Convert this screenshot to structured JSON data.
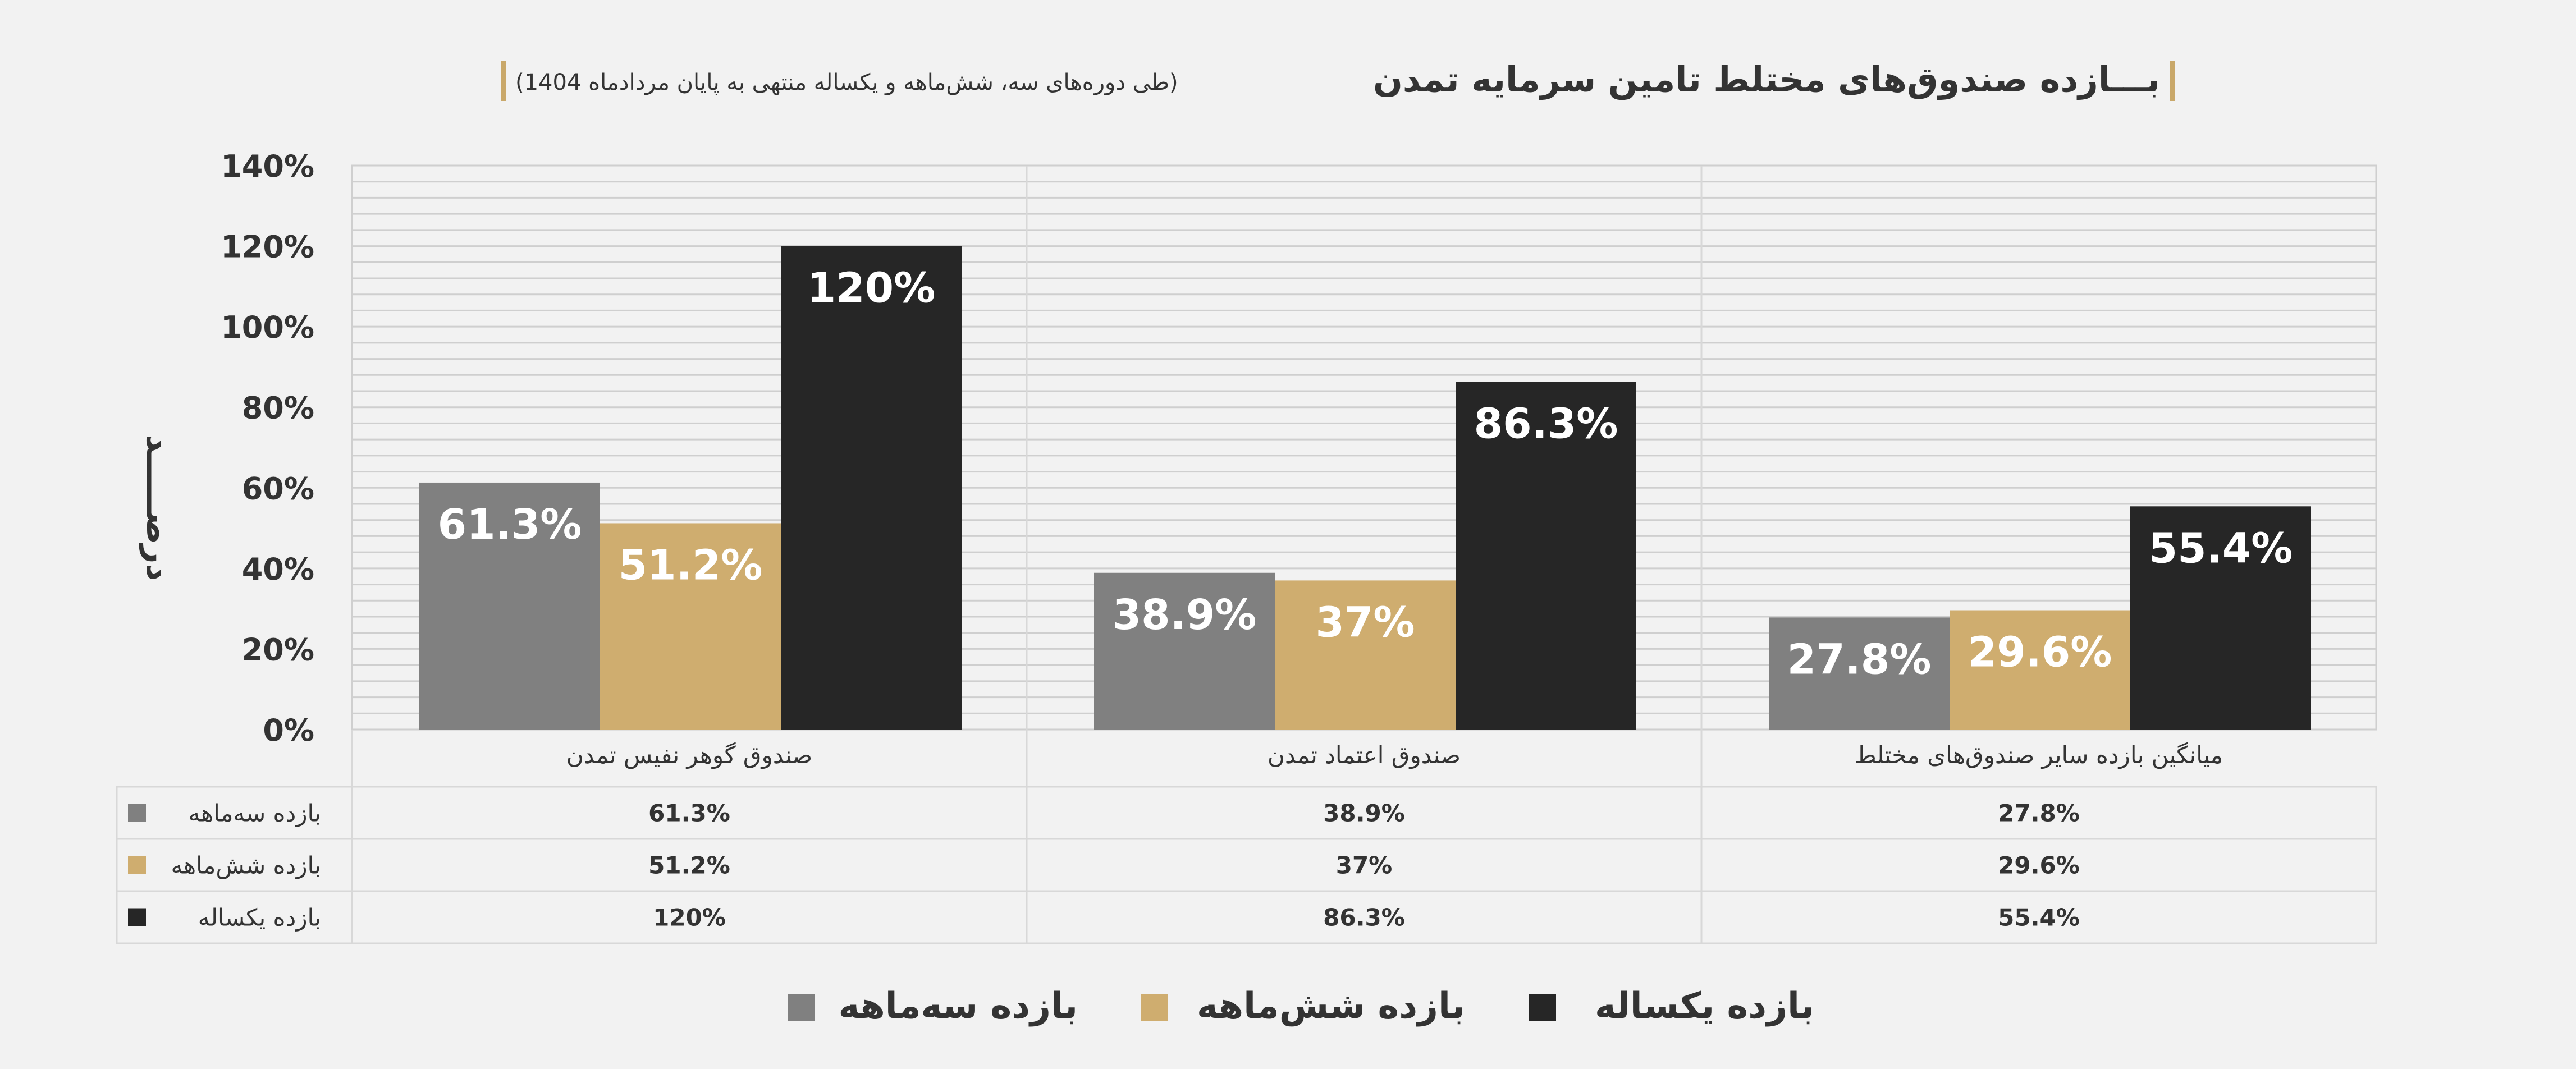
{
  "title": {
    "main": "بـــازده صندوق‌های مختلط تامین سرمایه تمدن",
    "sub": "(طی دوره‌های سه، شش‌ماهه و یکساله منتهی به پایان مردادماه 1404)"
  },
  "chart_data": {
    "type": "bar",
    "ylabel": "درصـــــد",
    "ylim": [
      0,
      140
    ],
    "yticks": [
      "0%",
      "20%",
      "40%",
      "60%",
      "80%",
      "100%",
      "120%",
      "140%"
    ],
    "grid": true,
    "categories": [
      "صندوق گوهر نفیس تمدن",
      "صندوق اعتماد تمدن",
      "میانگین بازده سایر صندوق‌های مختلط"
    ],
    "series": [
      {
        "name": "بازده سه‌ماهه",
        "color": "#808080",
        "values": [
          61.3,
          38.9,
          27.8
        ],
        "labels": [
          "61.3%",
          "38.9%",
          "27.8%"
        ]
      },
      {
        "name": "بازده شش‌ماهه",
        "color": "#cfad6f",
        "values": [
          51.2,
          37,
          29.6
        ],
        "labels": [
          "51.2%",
          "37%",
          "29.6%"
        ]
      },
      {
        "name": "بازده یکساله",
        "color": "#262626",
        "values": [
          120,
          86.3,
          55.4
        ],
        "labels": [
          "120%",
          "86.3%",
          "55.4%"
        ]
      }
    ],
    "legend_position": "bottom"
  },
  "colors": {
    "accent": "#c9a86a",
    "background": "#f2f2f2",
    "grid": "#cfcfcf"
  }
}
